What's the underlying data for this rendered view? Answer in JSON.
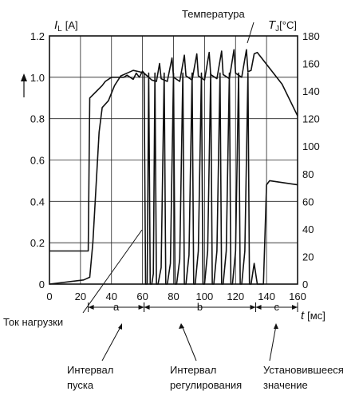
{
  "chart_data": {
    "type": "line",
    "x_axis": {
      "min": 0,
      "max": 160,
      "ticks": [
        0,
        20,
        40,
        60,
        80,
        100,
        120,
        140,
        160
      ],
      "label_var": "t",
      "label_unit": "[мс]"
    },
    "y_left": {
      "min": 0,
      "max": 1.2,
      "ticks": [
        "0",
        "0.2",
        "0.4",
        "0.6",
        "0.8",
        "1.0",
        "1.2"
      ],
      "label_var": "I",
      "label_sub": "L",
      "label_unit": "[A]"
    },
    "y_right": {
      "min": 0,
      "max": 180,
      "ticks": [
        "0",
        "20",
        "40",
        "60",
        "80",
        "100",
        "120",
        "140",
        "160",
        "180"
      ],
      "label_var": "T",
      "label_sub": "J",
      "label_unit": "[°C]"
    },
    "grid": true,
    "series": [
      {
        "name": "Температура",
        "axis": "right",
        "points": [
          [
            0,
            0
          ],
          [
            22,
            3
          ],
          [
            26,
            5
          ],
          [
            28,
            30
          ],
          [
            30,
            70
          ],
          [
            32,
            110
          ],
          [
            34,
            128
          ],
          [
            38,
            133
          ],
          [
            42,
            144
          ],
          [
            46,
            151
          ],
          [
            50,
            153
          ],
          [
            54,
            155
          ],
          [
            58,
            154
          ],
          [
            61,
            153
          ],
          [
            62,
            152
          ],
          [
            66,
            148
          ],
          [
            69,
            147
          ],
          [
            71,
            160
          ],
          [
            72,
            149
          ],
          [
            76,
            147
          ],
          [
            79,
            164
          ],
          [
            80,
            150
          ],
          [
            84,
            147
          ],
          [
            87,
            166
          ],
          [
            88,
            151
          ],
          [
            92,
            148
          ],
          [
            95,
            167
          ],
          [
            96,
            151
          ],
          [
            100,
            148
          ],
          [
            103,
            168
          ],
          [
            104,
            152
          ],
          [
            108,
            149
          ],
          [
            111,
            169
          ],
          [
            112,
            152
          ],
          [
            116,
            149
          ],
          [
            119,
            170
          ],
          [
            120,
            153
          ],
          [
            124,
            150
          ],
          [
            127,
            170
          ],
          [
            128,
            154
          ],
          [
            130,
            155
          ],
          [
            132,
            167
          ],
          [
            134,
            168
          ],
          [
            150,
            145
          ],
          [
            160,
            122
          ]
        ]
      },
      {
        "name": "Ток нагрузки",
        "axis": "left",
        "points": [
          [
            0,
            0.16
          ],
          [
            25,
            0.16
          ],
          [
            26,
            0.9
          ],
          [
            30,
            0.93
          ],
          [
            34,
            0.96
          ],
          [
            36,
            0.98
          ],
          [
            40,
            1.0
          ],
          [
            44,
            1.0
          ],
          [
            48,
            1.0
          ],
          [
            50,
            1.01
          ],
          [
            52,
            1.0
          ],
          [
            54,
            0.99
          ],
          [
            56,
            1.02
          ],
          [
            58,
            1.0
          ],
          [
            60,
            1.03
          ],
          [
            61,
            1.02
          ],
          [
            62,
            0.0
          ],
          [
            63,
            0.0
          ],
          [
            64,
            1.02
          ],
          [
            65,
            0.0
          ],
          [
            66,
            0.0
          ],
          [
            67,
            0.05
          ],
          [
            68,
            1.02
          ],
          [
            69,
            0.0
          ],
          [
            70,
            0.0
          ],
          [
            72,
            0.08
          ],
          [
            74,
            1.02
          ],
          [
            75,
            0.0
          ],
          [
            76,
            0.0
          ],
          [
            78,
            0.1
          ],
          [
            80,
            1.02
          ],
          [
            81,
            0.0
          ],
          [
            82,
            0.0
          ],
          [
            84,
            0.12
          ],
          [
            86,
            1.02
          ],
          [
            87,
            0.0
          ],
          [
            88,
            0.0
          ],
          [
            90,
            0.14
          ],
          [
            92,
            1.02
          ],
          [
            93,
            0.0
          ],
          [
            94,
            0.0
          ],
          [
            96,
            0.16
          ],
          [
            98,
            1.02
          ],
          [
            99,
            0.0
          ],
          [
            100,
            0.0
          ],
          [
            102,
            0.16
          ],
          [
            104,
            1.02
          ],
          [
            105,
            0.0
          ],
          [
            106,
            0.0
          ],
          [
            108,
            0.16
          ],
          [
            110,
            1.02
          ],
          [
            111,
            0.0
          ],
          [
            112,
            0.0
          ],
          [
            114,
            0.16
          ],
          [
            116,
            1.02
          ],
          [
            117,
            0.0
          ],
          [
            118,
            0.0
          ],
          [
            120,
            0.16
          ],
          [
            122,
            1.02
          ],
          [
            123,
            0.0
          ],
          [
            124,
            0.0
          ],
          [
            126,
            0.16
          ],
          [
            128,
            1.02
          ],
          [
            129,
            0.0
          ],
          [
            130,
            0.0
          ],
          [
            132,
            0.1
          ],
          [
            134,
            0.0
          ],
          [
            138,
            0.0
          ],
          [
            140,
            0.48
          ],
          [
            142,
            0.5
          ],
          [
            160,
            0.48
          ]
        ]
      }
    ],
    "intervals": [
      {
        "label": "a",
        "from": 25,
        "to": 61
      },
      {
        "label": "b",
        "from": 61,
        "to": 133
      },
      {
        "label": "c",
        "from": 133,
        "to": 160
      }
    ],
    "annotations": {
      "temperature_label": "Температура",
      "current_label": "Ток нагрузки",
      "captions": [
        {
          "line1": "Интервал",
          "line2": "пуска"
        },
        {
          "line1": "Интервал",
          "line2": "регулирования"
        },
        {
          "line1": "Установившееся",
          "line2": "значение"
        }
      ]
    }
  }
}
